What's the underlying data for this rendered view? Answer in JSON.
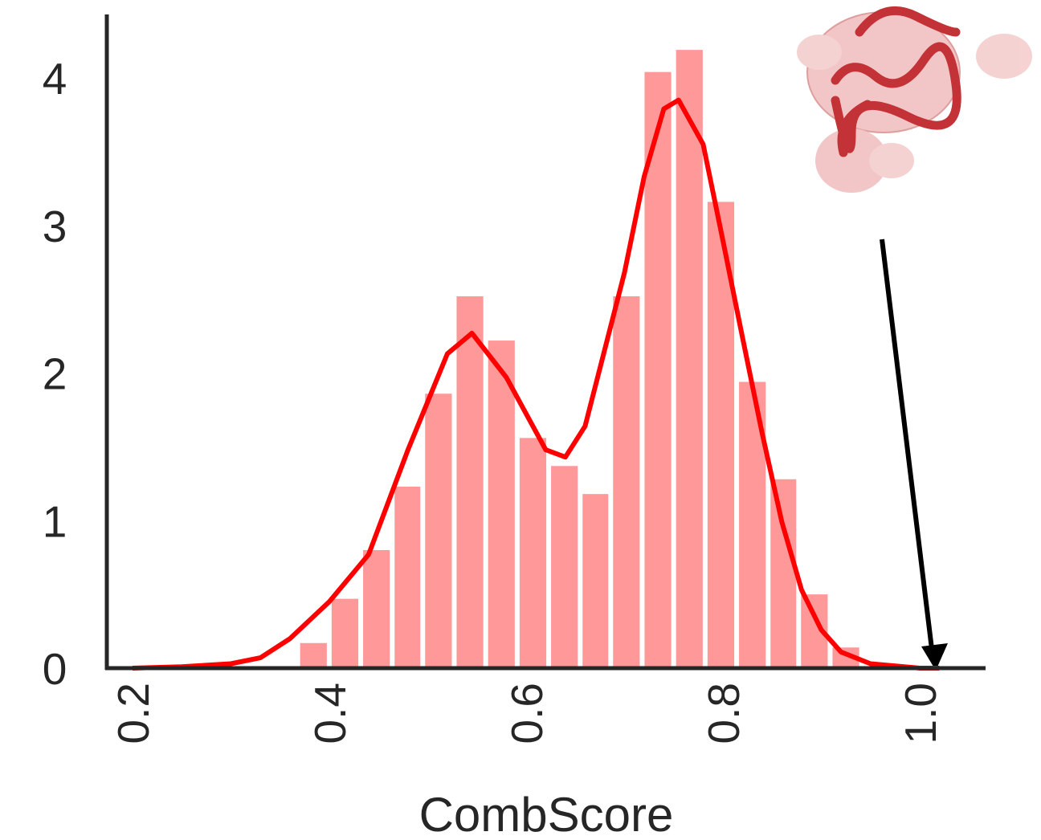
{
  "chart_data": {
    "type": "histogram",
    "xlabel": "CombScore",
    "bins": [
      0.368,
      0.4,
      0.432,
      0.464,
      0.495,
      0.527,
      0.559,
      0.591,
      0.623,
      0.655,
      0.686,
      0.718,
      0.75,
      0.782,
      0.814,
      0.846,
      0.877,
      0.909,
      0.941
    ],
    "values": [
      0.17,
      0.47,
      0.8,
      1.23,
      1.86,
      2.52,
      2.22,
      1.56,
      1.37,
      1.18,
      2.52,
      4.04,
      4.19,
      3.16,
      1.94,
      1.28,
      0.5,
      0.14
    ],
    "color": "#ff9999",
    "line": {
      "color": "#ff0000",
      "x": [
        0.2,
        0.25,
        0.3,
        0.33,
        0.36,
        0.4,
        0.44,
        0.48,
        0.52,
        0.545,
        0.58,
        0.62,
        0.64,
        0.66,
        0.7,
        0.72,
        0.74,
        0.755,
        0.78,
        0.8,
        0.82,
        0.84,
        0.86,
        0.88,
        0.9,
        0.92,
        0.95,
        1.0,
        1.02
      ],
      "values": [
        0.0,
        0.01,
        0.03,
        0.07,
        0.2,
        0.45,
        0.77,
        1.48,
        2.13,
        2.27,
        1.97,
        1.48,
        1.43,
        1.64,
        2.68,
        3.33,
        3.79,
        3.85,
        3.55,
        2.9,
        2.24,
        1.59,
        0.99,
        0.53,
        0.26,
        0.11,
        0.03,
        0.0,
        0.0
      ]
    },
    "xlim": [
      0.174,
      1.067
    ],
    "ylim": [
      0,
      4.43
    ],
    "xticks": [
      0.2,
      0.4,
      0.6,
      0.8,
      {
        "value": 1,
        "label": "1.0"
      }
    ],
    "yticks": [
      0,
      1,
      2,
      3,
      4
    ]
  }
}
